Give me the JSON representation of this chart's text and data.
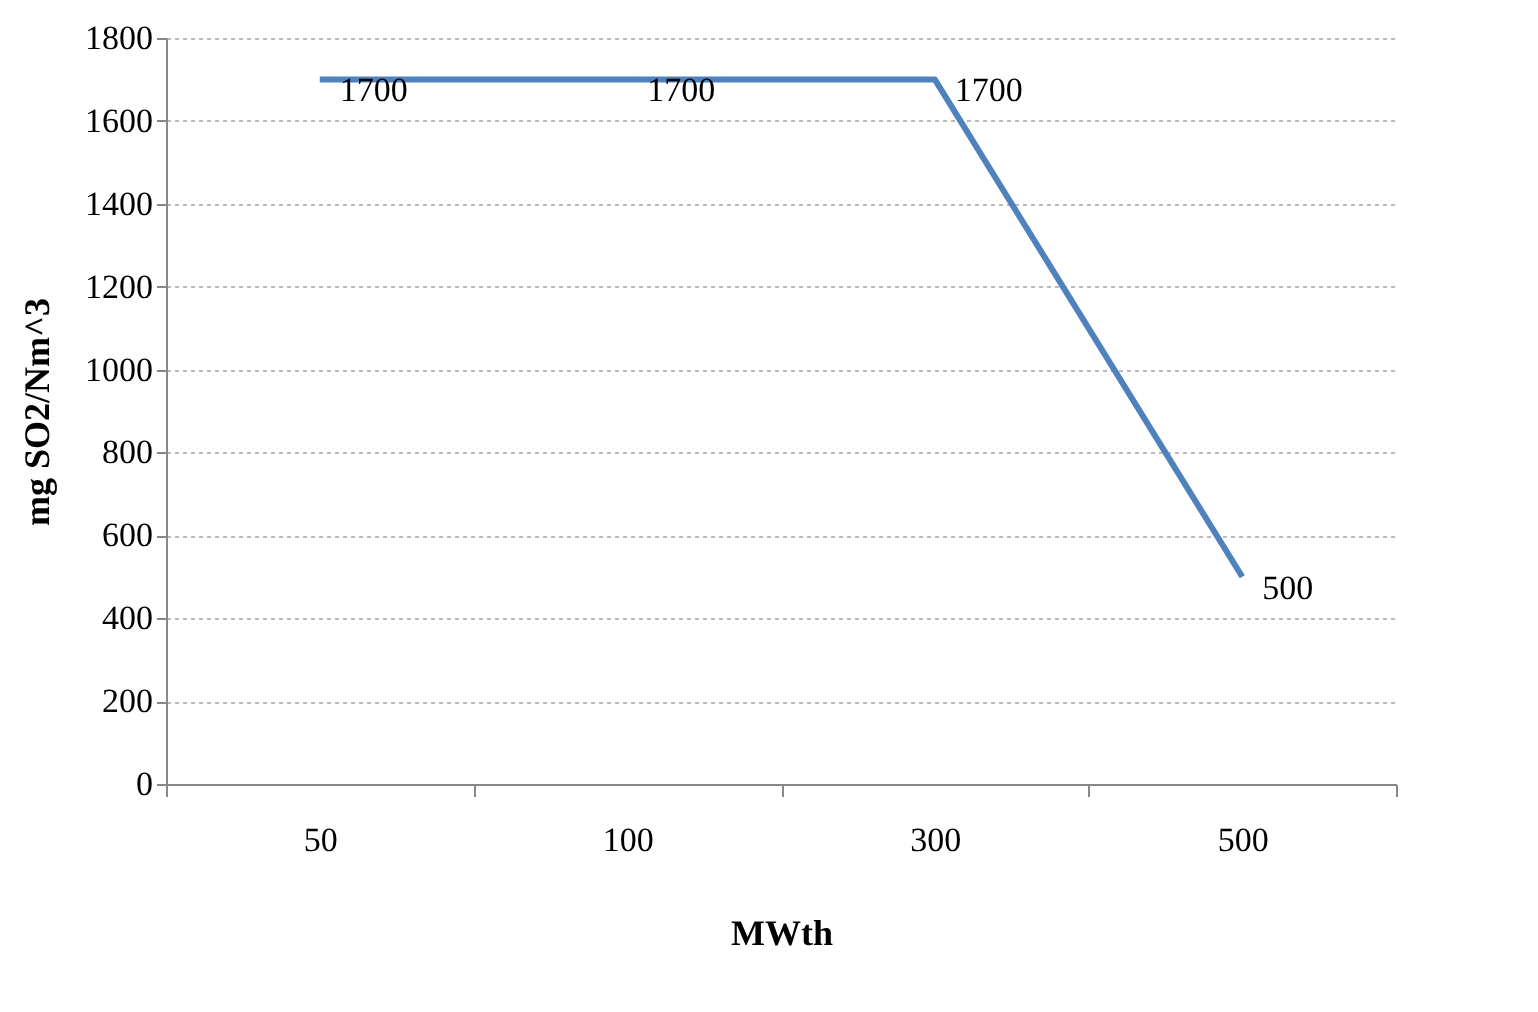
{
  "chart_data": {
    "type": "line",
    "xlabel": "MWth",
    "ylabel": "mg SO2/Nm^3",
    "categories": [
      "50",
      "100",
      "300",
      "500"
    ],
    "series": [
      {
        "color": "#4f81bd",
        "values": [
          1700,
          1700,
          1700,
          500
        ]
      }
    ],
    "ylim": [
      0,
      1800
    ],
    "yticks": [
      0,
      200,
      400,
      600,
      800,
      1000,
      1200,
      1400,
      1600,
      1800
    ],
    "grid": "y",
    "data_labels": true,
    "marker": "none",
    "line_style": "solid"
  }
}
